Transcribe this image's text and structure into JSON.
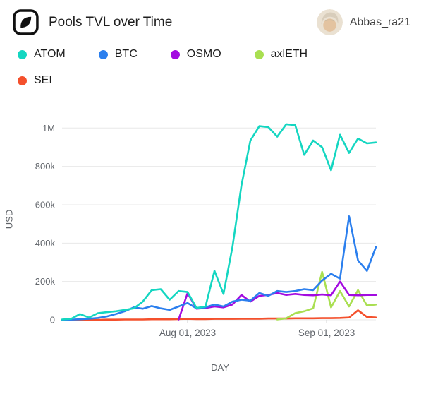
{
  "header": {
    "title": "Pools TVL over Time",
    "user_name": "Abbas_ra21"
  },
  "chart_data": {
    "type": "line",
    "title": "Pools TVL over Time",
    "xlabel": "DAY",
    "ylabel": "USD",
    "ylim": [
      0,
      1060000
    ],
    "grid": "horizontal",
    "legend_position": "top",
    "y_ticks": [
      {
        "value": 0,
        "label": "0"
      },
      {
        "value": 200000,
        "label": "200k"
      },
      {
        "value": 400000,
        "label": "400k"
      },
      {
        "value": 600000,
        "label": "600k"
      },
      {
        "value": 800000,
        "label": "800k"
      },
      {
        "value": 1000000,
        "label": "1M"
      }
    ],
    "x_ticks": [
      {
        "date": "2023-08-01",
        "label": "Aug 01, 2023"
      },
      {
        "date": "2023-09-01",
        "label": "Sep 01, 2023"
      }
    ],
    "x": [
      "2023-07-04",
      "2023-07-06",
      "2023-07-08",
      "2023-07-10",
      "2023-07-12",
      "2023-07-14",
      "2023-07-16",
      "2023-07-18",
      "2023-07-20",
      "2023-07-22",
      "2023-07-24",
      "2023-07-26",
      "2023-07-28",
      "2023-07-30",
      "2023-08-01",
      "2023-08-03",
      "2023-08-05",
      "2023-08-07",
      "2023-08-09",
      "2023-08-11",
      "2023-08-13",
      "2023-08-15",
      "2023-08-17",
      "2023-08-19",
      "2023-08-21",
      "2023-08-23",
      "2023-08-25",
      "2023-08-27",
      "2023-08-29",
      "2023-08-31",
      "2023-09-02",
      "2023-09-04",
      "2023-09-06",
      "2023-09-08",
      "2023-09-10",
      "2023-09-12"
    ],
    "series": [
      {
        "name": "ATOM",
        "color": "#14d6c1",
        "values": [
          2000,
          5000,
          30000,
          12000,
          35000,
          40000,
          45000,
          52000,
          60000,
          95000,
          155000,
          160000,
          105000,
          150000,
          145000,
          62000,
          70000,
          255000,
          135000,
          380000,
          700000,
          935000,
          1010000,
          1005000,
          955000,
          1020000,
          1015000,
          860000,
          935000,
          900000,
          780000,
          965000,
          870000,
          945000,
          920000,
          925000
        ]
      },
      {
        "name": "BTC",
        "color": "#2b7fee",
        "values": [
          0,
          1000,
          3000,
          6000,
          10000,
          18000,
          30000,
          45000,
          65000,
          58000,
          72000,
          60000,
          52000,
          70000,
          88000,
          60000,
          65000,
          80000,
          70000,
          95000,
          105000,
          100000,
          140000,
          125000,
          150000,
          145000,
          150000,
          160000,
          155000,
          205000,
          240000,
          215000,
          540000,
          310000,
          255000,
          380000
        ]
      },
      {
        "name": "OSMO",
        "color": "#a30be0",
        "values": [
          null,
          null,
          null,
          null,
          null,
          null,
          null,
          null,
          null,
          null,
          null,
          null,
          null,
          2000,
          140000,
          58000,
          62000,
          70000,
          65000,
          80000,
          130000,
          95000,
          125000,
          130000,
          140000,
          130000,
          135000,
          130000,
          128000,
          132000,
          128000,
          200000,
          130000,
          128000,
          130000,
          130000
        ]
      },
      {
        "name": "axlETH",
        "color": "#a9df51",
        "values": [
          null,
          null,
          null,
          null,
          null,
          null,
          null,
          null,
          null,
          null,
          null,
          null,
          null,
          null,
          null,
          null,
          null,
          null,
          null,
          null,
          null,
          null,
          null,
          null,
          2000,
          8000,
          35000,
          45000,
          60000,
          250000,
          65000,
          150000,
          70000,
          155000,
          75000,
          80000
        ]
      },
      {
        "name": "SEI",
        "color": "#f4502c",
        "values": [
          0,
          0,
          0,
          0,
          0,
          1000,
          1000,
          2000,
          2000,
          2000,
          3000,
          3000,
          3000,
          4000,
          5000,
          4000,
          4000,
          5000,
          5000,
          5000,
          6000,
          6000,
          6000,
          7000,
          7000,
          7000,
          8000,
          8000,
          8000,
          9000,
          9000,
          10000,
          12000,
          50000,
          15000,
          12000
        ]
      }
    ]
  }
}
